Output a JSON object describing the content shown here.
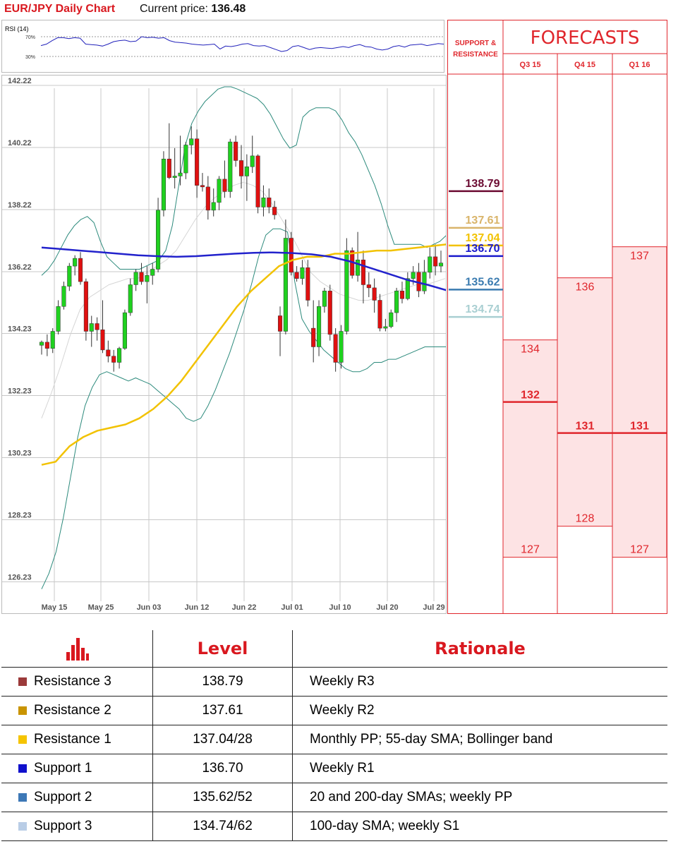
{
  "header": {
    "title": "EUR/JPY Daily Chart",
    "price_label": "Current price:",
    "price_value": "136.48"
  },
  "chart_data": [
    {
      "type": "line",
      "title": "RSI (14)",
      "y_ticks": [
        "70%",
        "30%"
      ],
      "ylim": [
        0,
        100
      ],
      "values": [
        52,
        55,
        62,
        68,
        68,
        66,
        68,
        67,
        55,
        54,
        53,
        51,
        55,
        60,
        62,
        63,
        60,
        61,
        70,
        68,
        69,
        67,
        68,
        62,
        59,
        58,
        57,
        55,
        54,
        53,
        54,
        55,
        45,
        51,
        50,
        52,
        55,
        56,
        52,
        51,
        52,
        48,
        44,
        40,
        42,
        50,
        52,
        48,
        44,
        47,
        48,
        47,
        46,
        48,
        50,
        48,
        52,
        54,
        50,
        49,
        45,
        43,
        45,
        50,
        52,
        49,
        53,
        54,
        55,
        52,
        54,
        56,
        55
      ]
    },
    {
      "type": "candlestick",
      "title": "EUR/JPY Daily Chart",
      "x_tick_labels": [
        "May 15",
        "May 25",
        "Jun 03",
        "Jun 12",
        "Jun 22",
        "Jul 01",
        "Jul 10",
        "Jul 20",
        "Jul 29"
      ],
      "y_tick_labels": [
        "142.22",
        "140.22",
        "138.22",
        "136.22",
        "134.23",
        "132.23",
        "130.23",
        "128.23",
        "126.23"
      ],
      "ylim": [
        125.9,
        142.45
      ],
      "candles": [
        {
          "o": 133.85,
          "h": 134.0,
          "l": 133.55,
          "c": 133.95
        },
        {
          "o": 133.95,
          "h": 134.2,
          "l": 133.5,
          "c": 133.75
        },
        {
          "o": 133.75,
          "h": 134.4,
          "l": 133.6,
          "c": 134.3
        },
        {
          "o": 134.3,
          "h": 135.3,
          "l": 134.2,
          "c": 135.1
        },
        {
          "o": 135.1,
          "h": 135.9,
          "l": 135.0,
          "c": 135.75
        },
        {
          "o": 135.75,
          "h": 136.5,
          "l": 135.6,
          "c": 136.4
        },
        {
          "o": 136.4,
          "h": 136.75,
          "l": 136.1,
          "c": 136.65
        },
        {
          "o": 136.65,
          "h": 136.85,
          "l": 135.8,
          "c": 135.9
        },
        {
          "o": 135.9,
          "h": 136.0,
          "l": 134.0,
          "c": 134.3
        },
        {
          "o": 134.3,
          "h": 134.8,
          "l": 133.8,
          "c": 134.55
        },
        {
          "o": 134.55,
          "h": 134.75,
          "l": 134.0,
          "c": 134.35
        },
        {
          "o": 134.35,
          "h": 135.3,
          "l": 133.6,
          "c": 133.7
        },
        {
          "o": 133.7,
          "h": 134.0,
          "l": 133.3,
          "c": 133.5
        },
        {
          "o": 133.5,
          "h": 133.7,
          "l": 133.0,
          "c": 133.3
        },
        {
          "o": 133.3,
          "h": 133.8,
          "l": 133.1,
          "c": 133.75
        },
        {
          "o": 133.75,
          "h": 135.0,
          "l": 133.7,
          "c": 134.9
        },
        {
          "o": 134.9,
          "h": 136.0,
          "l": 134.8,
          "c": 135.8
        },
        {
          "o": 135.8,
          "h": 136.3,
          "l": 135.6,
          "c": 136.2
        },
        {
          "o": 136.2,
          "h": 136.5,
          "l": 135.8,
          "c": 135.9
        },
        {
          "o": 135.9,
          "h": 136.4,
          "l": 135.2,
          "c": 136.1
        },
        {
          "o": 136.1,
          "h": 136.5,
          "l": 135.8,
          "c": 136.3
        },
        {
          "o": 136.3,
          "h": 138.6,
          "l": 136.2,
          "c": 138.2
        },
        {
          "o": 138.2,
          "h": 140.1,
          "l": 138.0,
          "c": 139.85
        },
        {
          "o": 139.85,
          "h": 141.0,
          "l": 139.2,
          "c": 139.25
        },
        {
          "o": 139.25,
          "h": 140.2,
          "l": 138.9,
          "c": 139.3
        },
        {
          "o": 139.3,
          "h": 140.6,
          "l": 139.0,
          "c": 139.4
        },
        {
          "o": 139.4,
          "h": 140.4,
          "l": 139.2,
          "c": 140.3
        },
        {
          "o": 140.3,
          "h": 140.9,
          "l": 140.0,
          "c": 140.5
        },
        {
          "o": 140.5,
          "h": 140.8,
          "l": 138.6,
          "c": 139.0
        },
        {
          "o": 139.0,
          "h": 139.4,
          "l": 138.8,
          "c": 138.95
        },
        {
          "o": 138.95,
          "h": 139.3,
          "l": 137.9,
          "c": 138.2
        },
        {
          "o": 138.2,
          "h": 138.9,
          "l": 138.0,
          "c": 138.45
        },
        {
          "o": 138.45,
          "h": 139.3,
          "l": 138.2,
          "c": 139.2
        },
        {
          "o": 139.2,
          "h": 139.8,
          "l": 138.6,
          "c": 138.8
        },
        {
          "o": 138.8,
          "h": 140.5,
          "l": 138.6,
          "c": 140.4
        },
        {
          "o": 140.4,
          "h": 140.6,
          "l": 139.6,
          "c": 139.8
        },
        {
          "o": 139.8,
          "h": 140.3,
          "l": 138.9,
          "c": 139.3
        },
        {
          "o": 139.3,
          "h": 140.0,
          "l": 138.5,
          "c": 139.6
        },
        {
          "o": 139.6,
          "h": 140.6,
          "l": 139.4,
          "c": 139.95
        },
        {
          "o": 139.95,
          "h": 140.0,
          "l": 138.1,
          "c": 138.3
        },
        {
          "o": 138.3,
          "h": 139.0,
          "l": 138.0,
          "c": 138.6
        },
        {
          "o": 138.6,
          "h": 138.9,
          "l": 138.1,
          "c": 138.3
        },
        {
          "o": 138.3,
          "h": 138.5,
          "l": 137.9,
          "c": 138.05
        },
        {
          "o": 134.8,
          "h": 135.1,
          "l": 133.5,
          "c": 134.3
        },
        {
          "o": 134.3,
          "h": 137.9,
          "l": 134.2,
          "c": 137.3
        },
        {
          "o": 137.3,
          "h": 137.5,
          "l": 136.1,
          "c": 136.2
        },
        {
          "o": 136.2,
          "h": 136.4,
          "l": 135.9,
          "c": 136.0
        },
        {
          "o": 136.0,
          "h": 136.6,
          "l": 135.8,
          "c": 136.35
        },
        {
          "o": 136.35,
          "h": 136.6,
          "l": 135.1,
          "c": 135.3
        },
        {
          "o": 134.4,
          "h": 135.3,
          "l": 133.3,
          "c": 133.8
        },
        {
          "o": 133.8,
          "h": 135.3,
          "l": 133.5,
          "c": 135.1
        },
        {
          "o": 135.1,
          "h": 135.7,
          "l": 134.9,
          "c": 135.6
        },
        {
          "o": 135.6,
          "h": 135.8,
          "l": 134.0,
          "c": 134.2
        },
        {
          "o": 134.2,
          "h": 134.4,
          "l": 133.0,
          "c": 133.3
        },
        {
          "o": 133.3,
          "h": 134.5,
          "l": 133.1,
          "c": 134.3
        },
        {
          "o": 134.3,
          "h": 137.3,
          "l": 134.2,
          "c": 136.9
        },
        {
          "o": 136.9,
          "h": 137.0,
          "l": 136.0,
          "c": 136.1
        },
        {
          "o": 136.1,
          "h": 137.5,
          "l": 135.9,
          "c": 136.6
        },
        {
          "o": 136.6,
          "h": 136.9,
          "l": 135.2,
          "c": 135.8
        },
        {
          "o": 135.8,
          "h": 136.2,
          "l": 135.4,
          "c": 135.7
        },
        {
          "o": 135.7,
          "h": 136.0,
          "l": 134.9,
          "c": 135.3
        },
        {
          "o": 135.3,
          "h": 135.5,
          "l": 134.3,
          "c": 134.4
        },
        {
          "o": 134.4,
          "h": 134.7,
          "l": 134.3,
          "c": 134.45
        },
        {
          "o": 134.45,
          "h": 135.0,
          "l": 134.4,
          "c": 134.9
        },
        {
          "o": 134.9,
          "h": 135.7,
          "l": 134.6,
          "c": 135.6
        },
        {
          "o": 135.6,
          "h": 135.9,
          "l": 135.2,
          "c": 135.35
        },
        {
          "o": 135.35,
          "h": 136.2,
          "l": 135.3,
          "c": 136.0
        },
        {
          "o": 136.0,
          "h": 136.4,
          "l": 135.8,
          "c": 136.2
        },
        {
          "o": 136.2,
          "h": 136.5,
          "l": 135.4,
          "c": 135.6
        },
        {
          "o": 135.6,
          "h": 136.6,
          "l": 135.5,
          "c": 136.2
        },
        {
          "o": 136.2,
          "h": 137.0,
          "l": 136.0,
          "c": 136.7
        },
        {
          "o": 136.7,
          "h": 137.1,
          "l": 136.1,
          "c": 136.4
        },
        {
          "o": 136.4,
          "h": 136.9,
          "l": 136.2,
          "c": 136.5
        }
      ],
      "bollinger_upper": [
        136.1,
        136.3,
        136.6,
        137.0,
        137.4,
        137.7,
        137.9,
        138.0,
        137.8,
        137.2,
        136.7,
        136.5,
        136.3,
        136.3,
        136.3,
        136.3,
        136.4,
        136.5,
        136.6,
        136.9,
        137.7,
        139.0,
        140.3,
        141.0,
        141.4,
        141.7,
        141.9,
        142.1,
        142.2,
        142.2,
        142.1,
        142.0,
        141.9,
        141.8,
        141.6,
        141.3,
        140.9,
        140.5,
        140.2,
        140.3,
        141.2,
        141.4,
        141.5,
        141.5,
        141.5,
        141.4,
        141.1,
        140.7,
        140.4,
        140.0,
        139.5,
        139.0,
        138.4,
        137.7,
        137.1,
        137.1,
        137.1,
        137.1,
        137.1,
        137.0,
        137.1,
        137.2,
        137.4
      ],
      "bollinger_lower": [
        126.0,
        126.5,
        127.2,
        128.3,
        129.6,
        130.9,
        131.9,
        132.5,
        132.9,
        133.0,
        132.9,
        132.8,
        132.7,
        132.8,
        132.7,
        132.6,
        132.4,
        132.2,
        132.0,
        131.8,
        131.5,
        131.4,
        131.5,
        131.9,
        132.4,
        133.0,
        133.6,
        134.3,
        135.0,
        135.8,
        136.7,
        137.4,
        137.6,
        137.6,
        137.5,
        135.9,
        134.7,
        134.3,
        134.0,
        133.7,
        133.5,
        133.3,
        133.1,
        133.0,
        133.0,
        133.1,
        133.3,
        133.3,
        133.4,
        133.4,
        133.5,
        133.6,
        133.7,
        133.8,
        133.8,
        133.8,
        133.8
      ],
      "bollinger_middle": [
        131.5,
        132.3,
        133.2,
        134.2,
        135.0,
        135.4,
        135.6,
        135.8,
        135.9,
        136.0,
        136.0,
        136.2,
        136.4,
        136.6,
        136.9,
        137.4,
        137.9,
        138.3,
        138.6,
        138.8,
        139.0,
        139.1,
        139.0,
        138.8,
        138.4,
        137.9,
        137.4,
        136.8,
        136.2,
        135.9,
        135.7,
        135.5,
        135.4,
        135.3,
        135.3,
        135.4,
        135.5,
        135.6,
        135.7,
        135.8,
        135.8,
        135.9,
        136.0
      ],
      "sma55": [
        130.0,
        130.1,
        130.6,
        130.9,
        131.1,
        131.2,
        131.3,
        131.5,
        131.8,
        132.2,
        132.7,
        133.3,
        133.9,
        134.5,
        135.1,
        135.6,
        136.0,
        136.4,
        136.6,
        136.7,
        136.7,
        136.8,
        136.8,
        136.85,
        136.9,
        136.9,
        136.95,
        137.0,
        137.05,
        137.1
      ],
      "sma200": [
        137.0,
        136.95,
        136.9,
        136.85,
        136.8,
        136.75,
        136.72,
        136.7,
        136.72,
        136.76,
        136.8,
        136.83,
        136.84,
        136.82,
        136.78,
        136.7,
        136.55,
        136.35,
        136.15,
        135.95,
        135.8,
        135.62
      ]
    }
  ],
  "forecast_panel": {
    "title": "FORECASTS",
    "support_resistance_label_line1": "SUPPORT &",
    "support_resistance_label_line2": "RESISTANCE",
    "columns": [
      "Q3 15",
      "Q4 15",
      "Q1 16"
    ],
    "levels": [
      {
        "label": "138.79",
        "value": 138.79,
        "color": "#6b0a31"
      },
      {
        "label": "137.61",
        "value": 137.61,
        "color": "#d9b46a"
      },
      {
        "label": "137.04",
        "value": 137.04,
        "color": "#f2c200"
      },
      {
        "label": "136.70",
        "value": 136.7,
        "color": "#1a1acc"
      },
      {
        "label": "135.62",
        "value": 135.62,
        "color": "#3a7bb0"
      },
      {
        "label": "134.74",
        "value": 134.74,
        "color": "#a9cfd2"
      }
    ],
    "ranges": [
      {
        "high": 134,
        "low": 127,
        "high_label": "134",
        "low_label": "127",
        "mid": 132,
        "mid_label": "132"
      },
      {
        "high": 136,
        "low": 128,
        "high_label": "136",
        "low_label": "128",
        "mid": 131,
        "mid_label": "131"
      },
      {
        "high": 137,
        "low": 127,
        "high_label": "137",
        "low_label": "127",
        "mid": 131,
        "mid_label": "131"
      }
    ]
  },
  "table": {
    "headers": [
      "Level",
      "Rationale"
    ],
    "rows": [
      {
        "name": "Resistance 3",
        "level": "138.79",
        "rationale": "Weekly R3",
        "color": "#9b3a3a"
      },
      {
        "name": "Resistance 2",
        "level": "137.61",
        "rationale": "Weekly R2",
        "color": "#c99400"
      },
      {
        "name": "Resistance 1",
        "level": "137.04/28",
        "rationale": "Monthly PP; 55-day SMA; Bollinger band",
        "color": "#f5c400"
      },
      {
        "name": "Support 1",
        "level": "136.70",
        "rationale": "Weekly R1",
        "color": "#1010cc"
      },
      {
        "name": "Support 2",
        "level": "135.62/52",
        "rationale": "20 and 200-day SMAs; weekly PP",
        "color": "#3d78b6"
      },
      {
        "name": "Support 3",
        "level": "134.74/62",
        "rationale": "100-day SMA; weekly S1",
        "color": "#b9cde6"
      }
    ]
  },
  "colors": {
    "bull": "#1fd11f",
    "bear": "#e01010",
    "bollinger": "#2c8a7c",
    "sma55": "#f2c200",
    "sma200": "#2222cc",
    "grid": "#c8c8c8",
    "forecast_border": "#e0262c",
    "forecast_fill": "#fde3e4"
  }
}
